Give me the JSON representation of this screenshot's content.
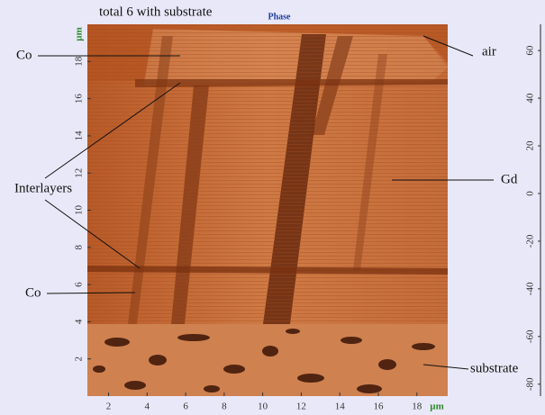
{
  "chart_data": {
    "type": "heatmap",
    "title": "total 6 with substrate",
    "subtitle": "Phase",
    "xlabel": "µm",
    "ylabel": "µm",
    "xlim": [
      0.9,
      19.6
    ],
    "xticks": [
      2,
      4,
      6,
      8,
      10,
      12,
      14,
      16,
      18
    ],
    "ylim": [
      0,
      20
    ],
    "yticks": [
      2,
      4,
      6,
      8,
      10,
      12,
      14,
      16,
      18
    ],
    "y2lim": [
      -85,
      71
    ],
    "y2ticks": [
      -80,
      -60,
      -40,
      -20,
      0,
      20,
      40,
      60
    ],
    "annotations": [
      "Co",
      "air",
      "Interlayers",
      "Gd",
      "Co",
      "substrate"
    ]
  }
}
